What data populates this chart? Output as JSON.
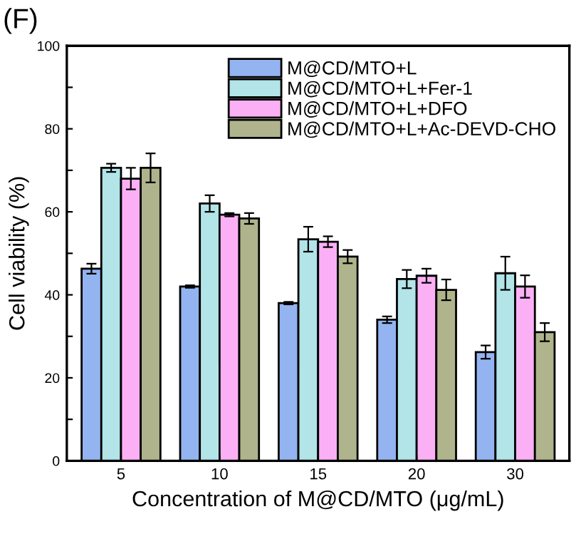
{
  "chart_data": {
    "type": "bar",
    "title": "(F)",
    "xlabel": "Concentration of M@CD/MTO (μg/mL)",
    "ylabel": "Cell viability (%)",
    "categories": [
      "5",
      "10",
      "15",
      "20",
      "30"
    ],
    "series": [
      {
        "name": "M@CD/MTO+L",
        "color": "#93b4f0",
        "values": [
          46.3,
          42,
          38,
          34,
          26.2
        ],
        "errors": [
          1.2,
          0.3,
          0.3,
          0.8,
          1.6
        ]
      },
      {
        "name": "M@CD/MTO+L+Fer-1",
        "color": "#b2e4e8",
        "values": [
          70.6,
          62,
          53.4,
          43.8,
          45.2
        ],
        "errors": [
          1,
          2,
          3,
          2.2,
          4
        ]
      },
      {
        "name": "M@CD/MTO+L+DFO",
        "color": "#fbb0f5",
        "values": [
          68,
          59.3,
          52.8,
          44.6,
          42
        ],
        "errors": [
          2.6,
          0.4,
          1.3,
          1.7,
          2.7
        ]
      },
      {
        "name": "M@CD/MTO+L+Ac-DEVD-CHO",
        "color": "#b0b48c",
        "values": [
          70.6,
          58.4,
          49.2,
          41.2,
          31
        ],
        "errors": [
          3.5,
          1.3,
          1.6,
          2.5,
          2.2
        ]
      }
    ],
    "ylim": [
      0,
      100
    ],
    "yticks": [
      0,
      {
        "value": 10,
        "label": null
      },
      20,
      {
        "value": 30,
        "label": null
      },
      40,
      {
        "value": 50,
        "label": null
      },
      60,
      {
        "value": 70,
        "label": null
      },
      80,
      {
        "value": 90,
        "label": null
      },
      100
    ],
    "legend": "top right",
    "grid": false
  }
}
